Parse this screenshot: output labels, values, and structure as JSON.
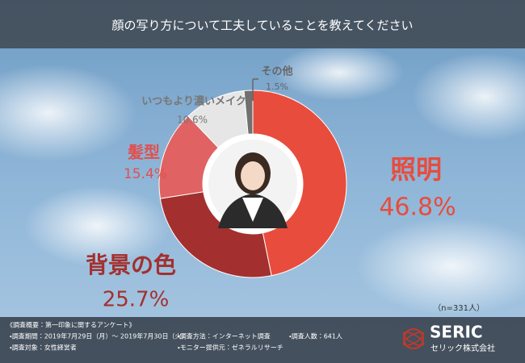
{
  "chart_data": {
    "type": "donut",
    "title": "顔の写り方について工夫していることを教えてください",
    "categories": [
      "照明",
      "背景の色",
      "髪型",
      "いつもより濃いメイク",
      "その他"
    ],
    "values": [
      46.8,
      25.7,
      15.4,
      10.6,
      1.5
    ],
    "value_labels": [
      "46.8%",
      "25.7%",
      "15.4%",
      "10.6%",
      "1.5%"
    ],
    "colors": [
      "#e84c3d",
      "#a3302f",
      "#e06262",
      "#e6e6e6",
      "#707070"
    ],
    "label_colors": [
      "#e84c3d",
      "#a3302f",
      "#e05050",
      "#777777",
      "#666666"
    ],
    "note": "（n=331人）"
  },
  "footer": {
    "heading": "《調査概要：第一印象に関するアンケート》",
    "items": [
      "・調査期間：2019年7月29日（月）～ 2019年7月30日（火）",
      "・調査方法：インターネット調査",
      "・調査人数：641人",
      "・調査対象：女性経営者",
      "・モニター提供元：ゼネラルリサーチ"
    ],
    "logo": "SERIC",
    "company": "セリック株式会社"
  }
}
